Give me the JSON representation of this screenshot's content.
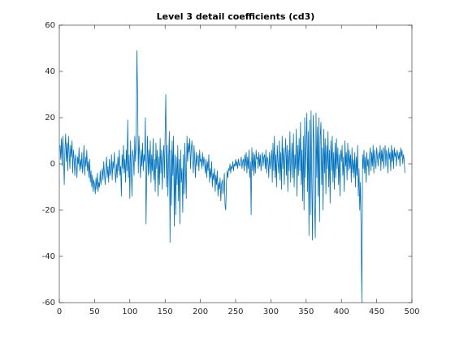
{
  "chart_data": {
    "type": "line",
    "title": "Level 3 detail coefficients (cd3)",
    "color": "#0072bd",
    "xlim": [
      0,
      500
    ],
    "xticks": [
      0,
      50,
      100,
      150,
      200,
      250,
      300,
      350,
      400,
      450,
      500
    ],
    "ylim": [
      -60,
      60
    ],
    "yticks": [
      -60,
      -40,
      -20,
      0,
      20,
      40,
      60
    ],
    "values": [
      8,
      2,
      11,
      -1,
      12,
      4,
      -9,
      6,
      13,
      1,
      9,
      -3,
      12,
      5,
      -2,
      8,
      3,
      10,
      -4,
      6,
      2,
      -5,
      4,
      1,
      -6,
      3,
      0,
      7,
      -3,
      2,
      -2,
      5,
      -4,
      1,
      8,
      -5,
      3,
      -1,
      6,
      -3,
      1,
      -6,
      2,
      -8,
      -3,
      -10,
      -5,
      -12,
      -7,
      -9,
      -13,
      -6,
      -11,
      -4,
      -12,
      -8,
      -10,
      -3,
      -9,
      -5,
      -2,
      -7,
      1,
      -4,
      -9,
      -2,
      3,
      -6,
      -1,
      -8,
      2,
      -5,
      -3,
      4,
      -7,
      1,
      -2,
      5,
      -4,
      -8,
      0,
      -6,
      3,
      -3,
      6,
      -5,
      -1,
      -14,
      4,
      -2,
      8,
      -4,
      2,
      -8,
      6,
      -3,
      19,
      -6,
      4,
      -15,
      10,
      -2,
      -14,
      6,
      3,
      -5,
      12,
      1,
      8,
      49,
      30,
      -4,
      12,
      2,
      -6,
      6,
      -1,
      9,
      -3,
      4,
      1,
      20,
      -26,
      -2,
      12,
      -5,
      6,
      -4,
      10,
      -8,
      4,
      -3,
      11,
      -7,
      2,
      -12,
      9,
      -2,
      6,
      -14,
      3,
      -9,
      11,
      -4,
      6,
      -11,
      2,
      8,
      -6,
      12,
      30,
      -10,
      8,
      -14,
      2,
      14,
      -34,
      6,
      -18,
      10,
      -5,
      12,
      -27,
      4,
      -22,
      3,
      -9,
      8,
      -16,
      2,
      -26,
      6,
      -8,
      -2,
      -21,
      4,
      -13,
      9,
      -3,
      -15,
      12,
      1,
      9,
      5,
      11,
      -2,
      6,
      10,
      3,
      -4,
      8,
      2,
      -6,
      5,
      -1,
      3,
      4,
      -3,
      6,
      1,
      2,
      -2,
      5,
      -1,
      3,
      0,
      -4,
      2,
      -6,
      1,
      -3,
      4,
      -8,
      -2,
      -6,
      1,
      -10,
      -4,
      -7,
      -2,
      -12,
      -5,
      -9,
      -3,
      -14,
      -8,
      -11,
      -6,
      -16,
      -9,
      -7,
      -13,
      -10,
      -4,
      -18,
      -20,
      -8,
      -3,
      -6,
      -2,
      -3,
      0,
      -4,
      -1,
      -2,
      1,
      -3,
      0,
      -1,
      2,
      -1,
      1,
      -2,
      2,
      0,
      -1,
      1,
      3,
      -2,
      1,
      2,
      -3,
      4,
      -1,
      5,
      -4,
      3,
      -2,
      6,
      -6,
      1,
      -22,
      7,
      -3,
      5,
      -5,
      4,
      -4,
      6,
      2,
      3,
      -2,
      5,
      -1,
      4,
      -3,
      2,
      5,
      -1,
      3,
      4,
      -2,
      6,
      -4,
      3,
      1,
      -6,
      5,
      -2,
      2,
      6,
      -8,
      9,
      -3,
      12,
      -6,
      4,
      -10,
      8,
      1,
      -4,
      10,
      -7,
      5,
      -11,
      12,
      -2,
      7,
      -9,
      3,
      11,
      -5,
      8,
      -12,
      6,
      -3,
      14,
      -8,
      2,
      9,
      -6,
      13,
      -10,
      4,
      -2,
      15,
      -14,
      8,
      -5,
      11,
      -3,
      18,
      -9,
      6,
      -16,
      12,
      -20,
      20,
      -6,
      8,
      22,
      -12,
      14,
      -31,
      19,
      -22,
      23,
      -8,
      -33,
      21,
      10,
      -18,
      -32,
      22,
      -6,
      16,
      -14,
      20,
      -25,
      12,
      18,
      -9,
      7,
      -20,
      15,
      -4,
      11,
      -13,
      8,
      -2,
      14,
      -10,
      6,
      -17,
      10,
      -3,
      12,
      -8,
      5,
      -11,
      9,
      -6,
      11,
      -2,
      7,
      -9,
      4,
      -14,
      6,
      1,
      8,
      -5,
      3,
      -12,
      10,
      -1,
      5,
      -7,
      9,
      -3,
      6,
      -2,
      4,
      -8,
      7,
      -4,
      2,
      -6,
      5,
      -10,
      3,
      -5,
      8,
      -14,
      -2,
      -20,
      -8,
      -31,
      -60,
      4,
      -2,
      6,
      -4,
      3,
      -8,
      5,
      -1,
      2,
      -5,
      4,
      7,
      -3,
      5,
      -1,
      8,
      -4,
      6,
      2,
      -2,
      7,
      3,
      -1,
      5,
      2,
      8,
      -3,
      6,
      1,
      7,
      -2,
      4,
      8,
      -1,
      6,
      3,
      -4,
      7,
      2,
      5,
      -3,
      8,
      1,
      6,
      -2,
      7,
      3,
      5,
      -1,
      6,
      4,
      2,
      5,
      -1,
      7,
      3,
      6,
      0,
      4,
      2,
      -4
    ]
  }
}
